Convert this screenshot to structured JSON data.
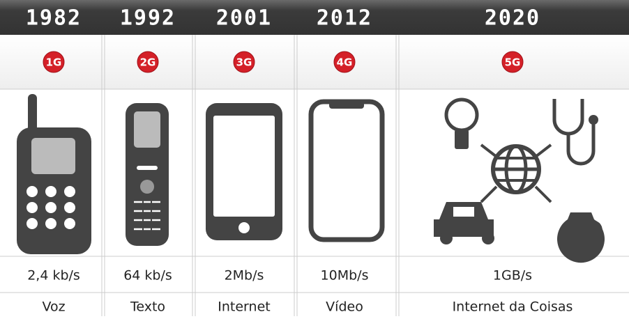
{
  "columns": [
    {
      "year": "1982",
      "generation": "1G",
      "speed": "2,4 kb/s",
      "use": "Voz"
    },
    {
      "year": "1992",
      "generation": "2G",
      "speed": "64 kb/s",
      "use": "Texto"
    },
    {
      "year": "2001",
      "generation": "3G",
      "speed": "2Mb/s",
      "use": "Internet"
    },
    {
      "year": "2012",
      "generation": "4G",
      "speed": "10Mb/s",
      "use": "Vídeo"
    },
    {
      "year": "2020",
      "generation": "5G",
      "speed": "1GB/s",
      "use": "Internet da Coisas"
    }
  ]
}
